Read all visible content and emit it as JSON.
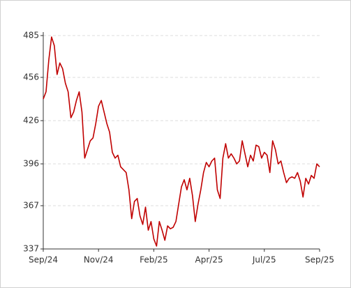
{
  "chart_data": {
    "type": "line",
    "x": [
      0,
      1,
      2,
      3,
      4,
      5,
      6,
      7,
      8,
      9,
      10,
      11,
      12,
      13,
      14,
      15,
      16,
      17,
      18,
      19,
      20,
      21,
      22,
      23,
      24,
      25,
      26,
      27,
      28,
      29,
      30,
      31,
      32,
      33,
      34,
      35,
      36,
      37,
      38,
      39,
      40,
      41,
      42,
      43,
      44,
      45,
      46,
      47,
      48,
      49,
      50,
      51,
      52,
      53,
      54,
      55,
      56,
      57,
      58,
      59,
      60,
      61,
      62,
      63,
      64,
      65,
      66,
      67,
      68,
      69,
      70,
      71,
      72,
      73,
      74,
      75,
      76,
      77,
      78,
      79,
      80,
      81,
      82,
      83,
      84,
      85,
      86,
      87,
      88,
      89,
      90,
      91,
      92,
      93,
      94,
      95,
      96,
      97,
      98,
      99,
      100
    ],
    "series": [
      {
        "color": "#c00000",
        "values": [
          441,
          446,
          468,
          484,
          478,
          458,
          466,
          462,
          452,
          446,
          428,
          432,
          440,
          446,
          432,
          400,
          406,
          412,
          414,
          424,
          436,
          440,
          432,
          424,
          418,
          404,
          400,
          402,
          394,
          392,
          390,
          378,
          358,
          370,
          372,
          360,
          354,
          366,
          350,
          356,
          344,
          339,
          356,
          350,
          343,
          353,
          351,
          352,
          356,
          368,
          380,
          385,
          378,
          386,
          374,
          356,
          368,
          378,
          390,
          397,
          394,
          398,
          400,
          378,
          372,
          400,
          410,
          400,
          403,
          400,
          396,
          398,
          412,
          403,
          394,
          402,
          398,
          409,
          408,
          400,
          404,
          402,
          390,
          412,
          406,
          396,
          398,
          390,
          383,
          386,
          387,
          386,
          390,
          384,
          373,
          386,
          382,
          388,
          386,
          396,
          394
        ]
      }
    ],
    "xlim": [
      0,
      100
    ],
    "xticks": [
      {
        "value": 0,
        "label": "Sep/24"
      },
      {
        "value": 20,
        "label": "Nov/24"
      },
      {
        "value": 40,
        "label": "Feb/25"
      },
      {
        "value": 60,
        "label": "Apr/25"
      },
      {
        "value": 80,
        "label": "Jul/25"
      },
      {
        "value": 100,
        "label": "Sep/25"
      }
    ],
    "ylim": [
      337,
      485
    ],
    "yticks": [
      337,
      367,
      396,
      426,
      456,
      485
    ],
    "grid": true
  }
}
